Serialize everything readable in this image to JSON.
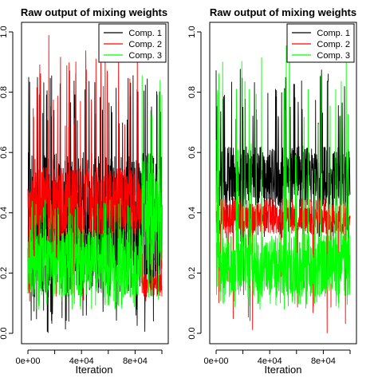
{
  "figure": {
    "colors": {
      "comp1": "#000000",
      "comp2": "#ff0000",
      "comp3": "#00ff00",
      "axis": "#000000",
      "background": "#ffffff"
    }
  },
  "chart_data": [
    {
      "type": "line",
      "title": "Raw output of mixing weights",
      "xlabel": "Iteration",
      "ylabel": "",
      "xlim": [
        0,
        100000
      ],
      "ylim": [
        0,
        1
      ],
      "xticks": [
        0,
        40000,
        80000
      ],
      "xtick_labels": [
        "0e+00",
        "4e+04",
        "8e+04"
      ],
      "yticks": [
        0,
        0.2,
        0.4,
        0.6,
        0.8,
        1.0
      ],
      "ytick_labels": [
        "0.0",
        "0.2",
        "0.4",
        "0.6",
        "0.8",
        "1.0"
      ],
      "legend_position": "top-right",
      "series": [
        {
          "name": "Comp. 1",
          "color": "#000000",
          "phases": [
            {
              "x_start": 0,
              "x_end": 100000,
              "center": 0.4,
              "core_low": 0.12,
              "core_high": 0.6,
              "spike_low": 0.0,
              "spike_high": 0.88
            }
          ]
        },
        {
          "name": "Comp. 2",
          "color": "#ff0000",
          "phases": [
            {
              "x_start": 0,
              "x_end": 85000,
              "center": 0.42,
              "core_low": 0.32,
              "core_high": 0.55,
              "spike_low": 0.1,
              "spike_high": 0.99
            },
            {
              "x_start": 85000,
              "x_end": 100000,
              "center": 0.16,
              "core_low": 0.12,
              "core_high": 0.2,
              "spike_low": 0.1,
              "spike_high": 0.35
            }
          ]
        },
        {
          "name": "Comp. 3",
          "color": "#00ff00",
          "phases": [
            {
              "x_start": 0,
              "x_end": 85000,
              "center": 0.25,
              "core_low": 0.12,
              "core_high": 0.35,
              "spike_low": 0.08,
              "spike_high": 0.45
            },
            {
              "x_start": 85000,
              "x_end": 100000,
              "center": 0.4,
              "core_low": 0.2,
              "core_high": 0.6,
              "spike_low": 0.1,
              "spike_high": 0.87
            }
          ]
        }
      ]
    },
    {
      "type": "line",
      "title": "Raw output of mixing weights",
      "xlabel": "Iteration",
      "ylabel": "",
      "xlim": [
        0,
        100000
      ],
      "ylim": [
        0,
        1
      ],
      "xticks": [
        0,
        40000,
        80000
      ],
      "xtick_labels": [
        "0e+00",
        "4e+04",
        "8e+04"
      ],
      "yticks": [
        0,
        0.2,
        0.4,
        0.6,
        0.8,
        1.0
      ],
      "ytick_labels": [
        "0.0",
        "0.2",
        "0.4",
        "0.6",
        "0.8",
        "1.0"
      ],
      "legend_position": "top-right",
      "series": [
        {
          "name": "Comp. 1",
          "color": "#000000",
          "phases": [
            {
              "x_start": 0,
              "x_end": 100000,
              "center": 0.52,
              "core_low": 0.42,
              "core_high": 0.62,
              "spike_low": 0.28,
              "spike_high": 0.88
            }
          ]
        },
        {
          "name": "Comp. 2",
          "color": "#ff0000",
          "phases": [
            {
              "x_start": 0,
              "x_end": 100000,
              "center": 0.38,
              "core_low": 0.33,
              "core_high": 0.43,
              "spike_low": 0.0,
              "spike_high": 0.45
            }
          ]
        },
        {
          "name": "Comp. 3",
          "color": "#00ff00",
          "phases": [
            {
              "x_start": 0,
              "x_end": 100000,
              "center": 0.23,
              "core_low": 0.12,
              "core_high": 0.33,
              "spike_low": 0.08,
              "spike_high": 0.99
            }
          ]
        }
      ]
    }
  ]
}
